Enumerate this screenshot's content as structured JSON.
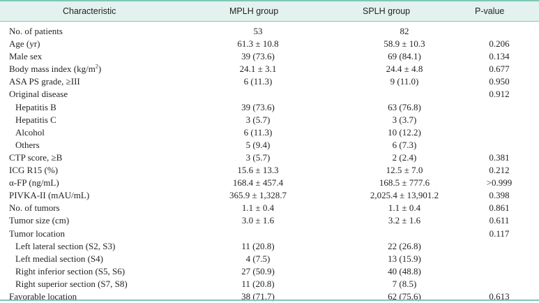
{
  "table": {
    "headers": [
      "Characteristic",
      "MPLH group",
      "SPLH group",
      "P-value"
    ],
    "rows": [
      {
        "label": "No. of patients",
        "mplh": "53",
        "splh": "82",
        "p": ""
      },
      {
        "label": "Age (yr)",
        "mplh": "61.3 ± 10.8",
        "splh": "58.9 ± 10.3",
        "p": "0.206"
      },
      {
        "label": "Male sex",
        "mplh": "39 (73.6)",
        "splh": "69 (84.1)",
        "p": "0.134"
      },
      {
        "label": "Body mass index (kg/m",
        "label_sup": "2",
        "label_tail": ")",
        "mplh": "24.1 ± 3.1",
        "splh": "24.4 ± 4.8",
        "p": "0.677"
      },
      {
        "label": "ASA PS grade, ≥III",
        "mplh": "6 (11.3)",
        "splh": "9 (11.0)",
        "p": "0.950"
      },
      {
        "label": "Original disease",
        "mplh": "",
        "splh": "",
        "p": "0.912"
      },
      {
        "label": "Hepatitis B",
        "mplh": "39 (73.6)",
        "splh": "63 (76.8)",
        "p": "",
        "indent": true
      },
      {
        "label": "Hepatitis C",
        "mplh": "3 (5.7)",
        "splh": "3 (3.7)",
        "p": "",
        "indent": true
      },
      {
        "label": "Alcohol",
        "mplh": "6 (11.3)",
        "splh": "10 (12.2)",
        "p": "",
        "indent": true
      },
      {
        "label": "Others",
        "mplh": "5 (9.4)",
        "splh": "6 (7.3)",
        "p": "",
        "indent": true
      },
      {
        "label": "CTP score, ≥B",
        "mplh": "3 (5.7)",
        "splh": "2 (2.4)",
        "p": "0.381"
      },
      {
        "label": "ICG R15 (%)",
        "mplh": "15.6 ± 13.3",
        "splh": "12.5 ± 7.0",
        "p": "0.212"
      },
      {
        "label": "α-FP (ng/mL)",
        "mplh": "168.4 ± 457.4",
        "splh": "168.5 ± 777.6",
        "p": ">0.999"
      },
      {
        "label": "PIVKA-II (mAU/mL)",
        "mplh": "365.9 ± 1,328.7",
        "splh": "2,025.4 ± 13,901.2",
        "p": "0.398"
      },
      {
        "label": "No. of tumors",
        "mplh": "1.1 ± 0.4",
        "splh": "1.1 ± 0.4",
        "p": "0.861"
      },
      {
        "label": "Tumor size (cm)",
        "mplh": "3.0 ± 1.6",
        "splh": "3.2 ± 1.6",
        "p": "0.611"
      },
      {
        "label": "Tumor location",
        "mplh": "",
        "splh": "",
        "p": "0.117"
      },
      {
        "label": "Left lateral section (S2, S3)",
        "mplh": "11 (20.8)",
        "splh": "22 (26.8)",
        "p": "",
        "indent": true
      },
      {
        "label": "Left medial section (S4)",
        "mplh": "4 (7.5)",
        "splh": "13 (15.9)",
        "p": "",
        "indent": true
      },
      {
        "label": "Right inferior section (S5, S6)",
        "mplh": "27 (50.9)",
        "splh": "40 (48.8)",
        "p": "",
        "indent": true
      },
      {
        "label": "Right superior section (S7, S8)",
        "mplh": "11 (20.8)",
        "splh": "7 (8.5)",
        "p": "",
        "indent": true
      },
      {
        "label": "Favorable location",
        "mplh": "38 (71.7)",
        "splh": "62 (75.6)",
        "p": "0.613"
      }
    ]
  },
  "colors": {
    "rule": "#7ec6b6",
    "header_bg": "#e3f2ef",
    "text": "#231f20"
  }
}
